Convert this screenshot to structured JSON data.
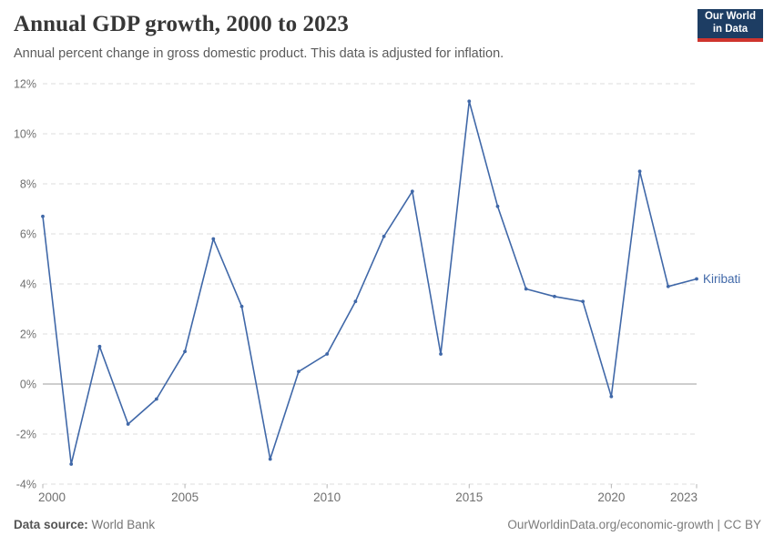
{
  "header": {
    "title": "Annual GDP growth, 2000 to 2023",
    "subtitle": "Annual percent change in gross domestic product. This data is adjusted for inflation.",
    "logo_line1": "Our World",
    "logo_line2": "in Data"
  },
  "colors": {
    "line": "#4068a8",
    "entity_label": "#4068a8",
    "grid": "#dcdcdc",
    "zero_line": "#9e9e9e",
    "axis_text": "#707070",
    "tick_mark": "#b5b5b5",
    "logo_bg": "#1d3d63",
    "logo_red": "#cf352e"
  },
  "chart_data": {
    "type": "line",
    "title": "Annual GDP growth, 2000 to 2023",
    "xlabel": "",
    "ylabel": "",
    "ylim": [
      -4,
      12
    ],
    "grid": "horizontal-dashed",
    "legend": "end-of-line-label",
    "x": [
      2000,
      2001,
      2002,
      2003,
      2004,
      2005,
      2006,
      2007,
      2008,
      2009,
      2010,
      2011,
      2012,
      2013,
      2014,
      2015,
      2016,
      2017,
      2018,
      2019,
      2020,
      2021,
      2022,
      2023
    ],
    "series": [
      {
        "name": "Kiribati",
        "values": [
          6.7,
          -3.2,
          1.5,
          -1.6,
          -0.6,
          1.3,
          5.8,
          3.1,
          -3.0,
          0.5,
          1.2,
          3.3,
          5.9,
          7.7,
          1.2,
          11.3,
          7.1,
          3.8,
          3.5,
          3.3,
          -0.5,
          8.5,
          3.9,
          4.2
        ]
      }
    ],
    "yticks": [
      -4,
      -2,
      0,
      2,
      4,
      6,
      8,
      10,
      12
    ],
    "ytick_labels": [
      "-4%",
      "-2%",
      "0%",
      "2%",
      "4%",
      "6%",
      "8%",
      "10%",
      "12%"
    ],
    "xticks": [
      2000,
      2005,
      2010,
      2015,
      2020,
      2023
    ],
    "xtick_labels": [
      "2000",
      "2005",
      "2010",
      "2015",
      "2020",
      "2023"
    ]
  },
  "footer": {
    "source_label": "Data source:",
    "source_value": "World Bank",
    "credit": "OurWorldinData.org/economic-growth | CC BY"
  }
}
